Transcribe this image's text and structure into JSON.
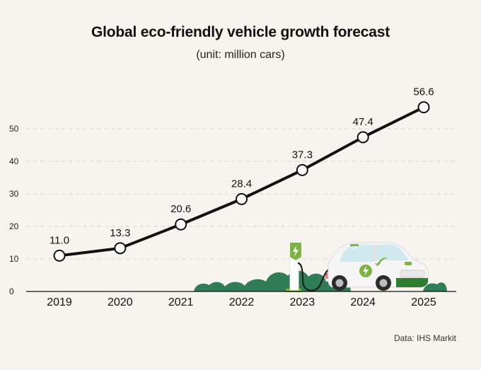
{
  "title": "Global eco-friendly vehicle growth forecast",
  "subtitle": "(unit: million cars)",
  "source": "Data: IHS Markit",
  "colors": {
    "line": "#111111",
    "marker_fill": "#ffffff",
    "grid": "#d8d4cc",
    "bush": "#2f7d57",
    "charger_green": "#7cb342",
    "car_body": "#f5f5f5",
    "car_glass": "#cfe9ef"
  },
  "icons": [
    "charging-station-icon",
    "electric-car-icon",
    "bush-icon",
    "lightning-icon"
  ],
  "chart_data": {
    "type": "line",
    "title": "Global eco-friendly vehicle growth forecast",
    "subtitle": "(unit: million cars)",
    "categories": [
      "2019",
      "2020",
      "2021",
      "2022",
      "2023",
      "2024",
      "2025"
    ],
    "values": [
      11.0,
      13.3,
      20.6,
      28.4,
      37.3,
      47.4,
      56.6
    ],
    "data_labels": [
      "11.0",
      "13.3",
      "20.6",
      "28.4",
      "37.3",
      "47.4",
      "56.6"
    ],
    "yticks": [
      "0",
      "10",
      "20",
      "30",
      "40",
      "50"
    ],
    "ylim": [
      0,
      50
    ],
    "grid": true,
    "legend": "none"
  }
}
